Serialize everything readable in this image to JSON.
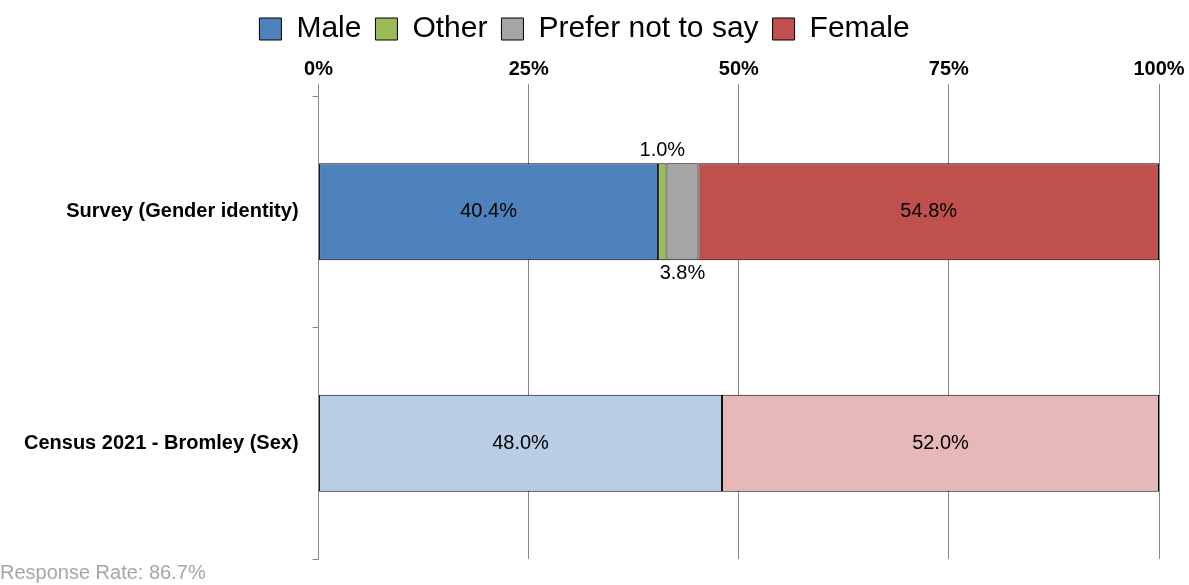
{
  "chart_data": {
    "type": "bar",
    "orientation": "horizontal",
    "stacked": true,
    "categories": [
      "Survey (Gender identity)",
      "Census 2021 - Bromley (Sex)"
    ],
    "series": [
      {
        "name": "Male",
        "color": "#4f81bd",
        "colors": [
          "#4f81bd",
          "#b9cde5"
        ],
        "values": [
          40.4,
          48.0
        ],
        "value_labels": [
          "40.4%",
          "48.0%"
        ]
      },
      {
        "name": "Other",
        "color": "#9bbb59",
        "colors": [
          "#9bbb59",
          "#9bbb59"
        ],
        "values": [
          1.0,
          null
        ],
        "value_labels": [
          "1.0%",
          null
        ]
      },
      {
        "name": "Prefer not to say",
        "color": "#a5a5a5",
        "colors": [
          "#a5a5a5",
          "#a5a5a5"
        ],
        "values": [
          3.8,
          null
        ],
        "value_labels": [
          "3.8%",
          null
        ]
      },
      {
        "name": "Female",
        "color": "#c0504d",
        "colors": [
          "#c0504d",
          "#e6b9b8"
        ],
        "values": [
          54.8,
          52.0
        ],
        "value_labels": [
          "54.8%",
          "52.0%"
        ]
      }
    ],
    "xlim": [
      0,
      100
    ],
    "xticks": [
      {
        "value": 0,
        "label": "0%"
      },
      {
        "value": 25,
        "label": "25%"
      },
      {
        "value": 50,
        "label": "50%"
      },
      {
        "value": 75,
        "label": "75%"
      },
      {
        "value": 100,
        "label": "100%"
      }
    ],
    "grid": "x",
    "legend": "top",
    "annotations": [
      "Response Rate: 86.7%"
    ]
  }
}
